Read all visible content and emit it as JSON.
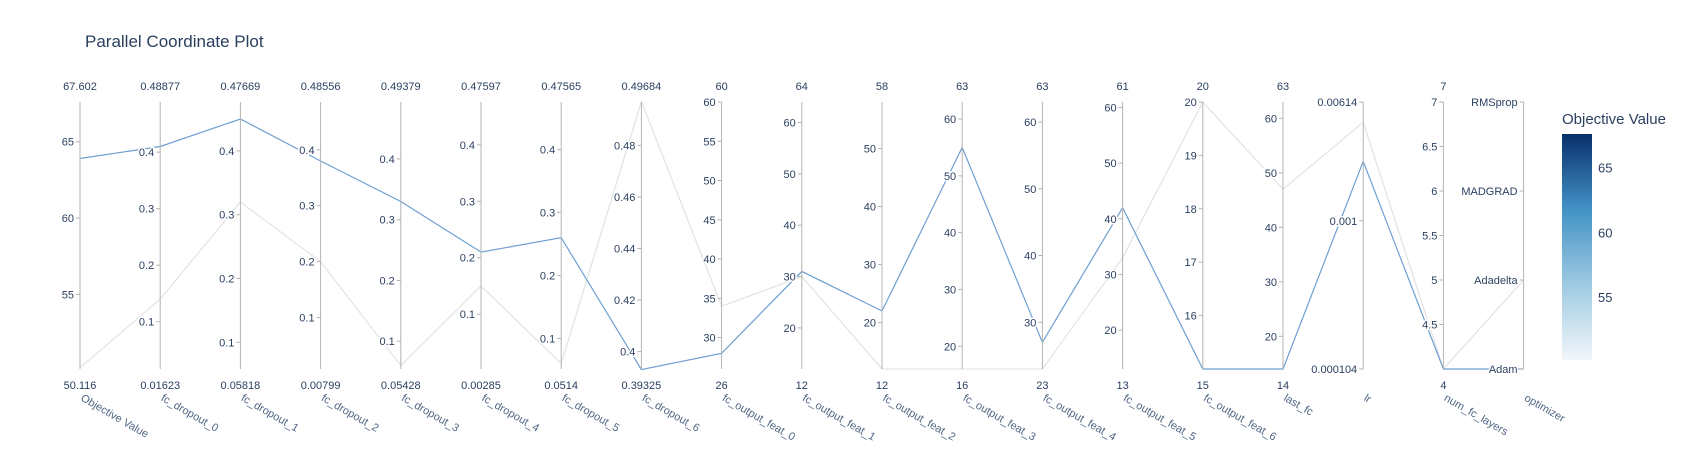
{
  "chart_data": {
    "type": "parallel_coordinates",
    "title": "Parallel Coordinate Plot",
    "axes": [
      {
        "label": "Objective Value",
        "min": 50.116,
        "max": 67.602,
        "min_label": "50.116",
        "max_label": "67.602",
        "ticks": [
          {
            "value": 55,
            "label": "55"
          },
          {
            "value": 60,
            "label": "60"
          },
          {
            "value": 65,
            "label": "65"
          }
        ]
      },
      {
        "label": "fc_dropout_0",
        "min": 0.01623,
        "max": 0.48877,
        "min_label": "0.01623",
        "max_label": "0.48877",
        "ticks": [
          {
            "value": 0.1,
            "label": "0.1"
          },
          {
            "value": 0.2,
            "label": "0.2"
          },
          {
            "value": 0.3,
            "label": "0.3"
          },
          {
            "value": 0.4,
            "label": "0.4"
          }
        ]
      },
      {
        "label": "fc_dropout_1",
        "min": 0.05818,
        "max": 0.47669,
        "min_label": "0.05818",
        "max_label": "0.47669",
        "ticks": [
          {
            "value": 0.1,
            "label": "0.1"
          },
          {
            "value": 0.2,
            "label": "0.2"
          },
          {
            "value": 0.3,
            "label": "0.3"
          },
          {
            "value": 0.4,
            "label": "0.4"
          }
        ]
      },
      {
        "label": "fc_dropout_2",
        "min": 0.00799,
        "max": 0.48556,
        "min_label": "0.00799",
        "max_label": "0.48556",
        "ticks": [
          {
            "value": 0.1,
            "label": "0.1"
          },
          {
            "value": 0.2,
            "label": "0.2"
          },
          {
            "value": 0.3,
            "label": "0.3"
          },
          {
            "value": 0.4,
            "label": "0.4"
          }
        ]
      },
      {
        "label": "fc_dropout_3",
        "min": 0.05428,
        "max": 0.49379,
        "min_label": "0.05428",
        "max_label": "0.49379",
        "ticks": [
          {
            "value": 0.1,
            "label": "0.1"
          },
          {
            "value": 0.2,
            "label": "0.2"
          },
          {
            "value": 0.3,
            "label": "0.3"
          },
          {
            "value": 0.4,
            "label": "0.4"
          }
        ]
      },
      {
        "label": "fc_dropout_4",
        "min": 0.00285,
        "max": 0.47597,
        "min_label": "0.00285",
        "max_label": "0.47597",
        "ticks": [
          {
            "value": 0.1,
            "label": "0.1"
          },
          {
            "value": 0.2,
            "label": "0.2"
          },
          {
            "value": 0.3,
            "label": "0.3"
          },
          {
            "value": 0.4,
            "label": "0.4"
          }
        ]
      },
      {
        "label": "fc_dropout_5",
        "min": 0.0514,
        "max": 0.47565,
        "min_label": "0.0514",
        "max_label": "0.47565",
        "ticks": [
          {
            "value": 0.1,
            "label": "0.1"
          },
          {
            "value": 0.2,
            "label": "0.2"
          },
          {
            "value": 0.3,
            "label": "0.3"
          },
          {
            "value": 0.4,
            "label": "0.4"
          }
        ]
      },
      {
        "label": "fc_dropout_6",
        "min": 0.39325,
        "max": 0.49684,
        "min_label": "0.39325",
        "max_label": "0.49684",
        "ticks": [
          {
            "value": 0.4,
            "label": "0.4"
          },
          {
            "value": 0.42,
            "label": "0.42"
          },
          {
            "value": 0.44,
            "label": "0.44"
          },
          {
            "value": 0.46,
            "label": "0.46"
          },
          {
            "value": 0.48,
            "label": "0.48"
          }
        ]
      },
      {
        "label": "fc_output_feat_0",
        "min": 26,
        "max": 60,
        "min_label": "26",
        "max_label": "60",
        "ticks": [
          {
            "value": 30,
            "label": "30"
          },
          {
            "value": 35,
            "label": "35"
          },
          {
            "value": 40,
            "label": "40"
          },
          {
            "value": 45,
            "label": "45"
          },
          {
            "value": 50,
            "label": "50"
          },
          {
            "value": 55,
            "label": "55"
          },
          {
            "value": 60,
            "label": "60"
          }
        ]
      },
      {
        "label": "fc_output_feat_1",
        "min": 12,
        "max": 64,
        "min_label": "12",
        "max_label": "64",
        "ticks": [
          {
            "value": 20,
            "label": "20"
          },
          {
            "value": 30,
            "label": "30"
          },
          {
            "value": 40,
            "label": "40"
          },
          {
            "value": 50,
            "label": "50"
          },
          {
            "value": 60,
            "label": "60"
          }
        ]
      },
      {
        "label": "fc_output_feat_2",
        "min": 12,
        "max": 58,
        "min_label": "12",
        "max_label": "58",
        "ticks": [
          {
            "value": 20,
            "label": "20"
          },
          {
            "value": 30,
            "label": "30"
          },
          {
            "value": 40,
            "label": "40"
          },
          {
            "value": 50,
            "label": "50"
          }
        ]
      },
      {
        "label": "fc_output_feat_3",
        "min": 16,
        "max": 63,
        "min_label": "16",
        "max_label": "63",
        "ticks": [
          {
            "value": 20,
            "label": "20"
          },
          {
            "value": 30,
            "label": "30"
          },
          {
            "value": 40,
            "label": "40"
          },
          {
            "value": 50,
            "label": "50"
          },
          {
            "value": 60,
            "label": "60"
          }
        ]
      },
      {
        "label": "fc_output_feat_4",
        "min": 23,
        "max": 63,
        "min_label": "23",
        "max_label": "63",
        "ticks": [
          {
            "value": 30,
            "label": "30"
          },
          {
            "value": 40,
            "label": "40"
          },
          {
            "value": 50,
            "label": "50"
          },
          {
            "value": 60,
            "label": "60"
          }
        ]
      },
      {
        "label": "fc_output_feat_5",
        "min": 13,
        "max": 61,
        "min_label": "13",
        "max_label": "61",
        "ticks": [
          {
            "value": 20,
            "label": "20"
          },
          {
            "value": 30,
            "label": "30"
          },
          {
            "value": 40,
            "label": "40"
          },
          {
            "value": 50,
            "label": "50"
          },
          {
            "value": 60,
            "label": "60"
          }
        ]
      },
      {
        "label": "fc_output_feat_6",
        "min": 15,
        "max": 20,
        "min_label": "15",
        "max_label": "20",
        "ticks": [
          {
            "value": 16,
            "label": "16"
          },
          {
            "value": 17,
            "label": "17"
          },
          {
            "value": 18,
            "label": "18"
          },
          {
            "value": 19,
            "label": "19"
          },
          {
            "value": 20,
            "label": "20"
          }
        ]
      },
      {
        "label": "last_fc",
        "min": 14,
        "max": 63,
        "min_label": "14",
        "max_label": "63",
        "ticks": [
          {
            "value": 20,
            "label": "20"
          },
          {
            "value": 30,
            "label": "30"
          },
          {
            "value": 40,
            "label": "40"
          },
          {
            "value": 50,
            "label": "50"
          },
          {
            "value": 60,
            "label": "60"
          }
        ]
      },
      {
        "label": "lr",
        "scale": "log",
        "min": 0.000104,
        "max": 0.00614,
        "min_label": "",
        "max_label": "",
        "ticks": [
          {
            "value": 0.000104,
            "label": "0.000104"
          },
          {
            "value": 0.001,
            "label": "0.001"
          },
          {
            "value": 0.00614,
            "label": "0.00614"
          }
        ]
      },
      {
        "label": "num_fc_layers",
        "min": 4,
        "max": 7,
        "min_label": "4",
        "max_label": "7",
        "ticks": [
          {
            "value": 4.5,
            "label": "4.5"
          },
          {
            "value": 5,
            "label": "5"
          },
          {
            "value": 5.5,
            "label": "5.5"
          },
          {
            "value": 6,
            "label": "6"
          },
          {
            "value": 6.5,
            "label": "6.5"
          },
          {
            "value": 7,
            "label": "7"
          }
        ]
      },
      {
        "label": "optimizer",
        "scale": "categorical",
        "min": 0,
        "max": 3,
        "min_label": "",
        "max_label": "",
        "ticks": [
          {
            "value": 0,
            "label": "Adam"
          },
          {
            "value": 1,
            "label": "Adadelta"
          },
          {
            "value": 2,
            "label": "MADGRAD"
          },
          {
            "value": 3,
            "label": "RMSprop"
          }
        ]
      }
    ],
    "lines": [
      {
        "highlighted": true,
        "values": [
          63.9,
          0.41,
          0.45,
          0.38,
          0.33,
          0.21,
          0.26,
          0.393,
          28.0,
          31.0,
          22.0,
          55.0,
          27.0,
          42.0,
          15.0,
          14.0,
          0.00248,
          4.0,
          0.0
        ]
      },
      {
        "highlighted": false,
        "values": [
          50.2,
          0.14,
          0.32,
          0.2,
          0.06,
          0.15,
          0.06,
          0.497,
          34.0,
          30.0,
          12.0,
          16.0,
          23.0,
          33.0,
          20.0,
          47.0,
          0.0045,
          4.0,
          1.0
        ]
      },
      {
        "highlighted": false,
        "values": [
          50.2,
          0.14,
          0.32,
          0.2,
          0.06,
          0.15,
          0.06,
          0.497,
          34.0,
          30.0,
          12.0,
          16.0,
          23.0,
          33.0,
          20.0,
          47.0,
          0.0045,
          4.0,
          1.0
        ]
      }
    ],
    "colorbar": {
      "title": "Objective Value",
      "min": 50.116,
      "max": 67.602,
      "ticks": [
        55,
        60,
        65
      ],
      "colors": [
        "#f2f6fb",
        "#9ecae1",
        "#4292c6",
        "#08306b"
      ]
    },
    "line_color": "#6d9fd1",
    "faded_line_color": "#e2e2e2"
  }
}
